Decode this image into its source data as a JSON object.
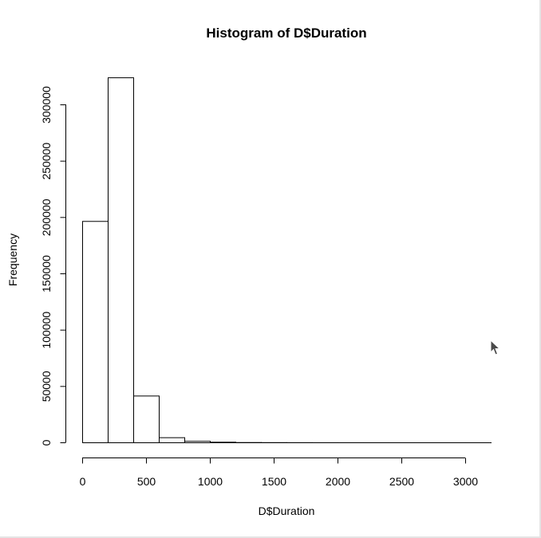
{
  "chart_data": {
    "type": "bar",
    "title": "Histogram of D$Duration",
    "xlabel": "D$Duration",
    "ylabel": "Frequency",
    "bin_edges": [
      0,
      200,
      400,
      600,
      800,
      1000,
      1200,
      1400,
      1600,
      1800,
      2000,
      2200,
      2400,
      2600,
      2800,
      3000,
      3200
    ],
    "values": [
      196500,
      324000,
      41500,
      4500,
      1300,
      500,
      200,
      120,
      60,
      30,
      20,
      10,
      8,
      5,
      3,
      2
    ],
    "xticks": [
      0,
      500,
      1000,
      1500,
      2000,
      2500,
      3000
    ],
    "yticks": [
      0,
      50000,
      100000,
      150000,
      200000,
      250000,
      300000
    ],
    "xlim": [
      0,
      3200
    ],
    "ylim": [
      0,
      324000
    ],
    "grid": false
  },
  "cursor_icon": "mouse-pointer-icon"
}
